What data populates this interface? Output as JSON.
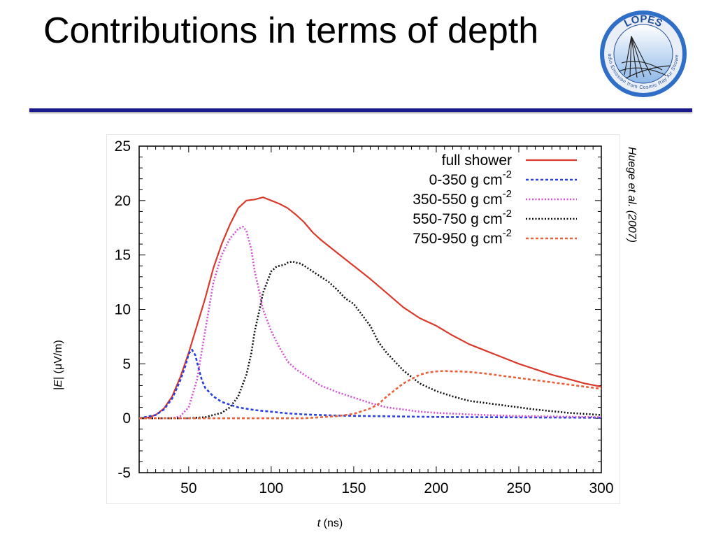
{
  "slide": {
    "title": "Contributions in terms of depth",
    "citation": "Huege et al. (2007)",
    "logo": {
      "top_text": "LOPES",
      "ring_text": "Radio Emission from Cosmic Ray Air Showers"
    }
  },
  "chart_data": {
    "type": "line",
    "xlabel": "t (ns)",
    "xlabel_italic": "t",
    "xlabel_unit": "(ns)",
    "ylabel": "|E| (μV/m)",
    "ylabel_italic": "E",
    "ylabel_unit": "(μV/m)",
    "xlim": [
      20,
      300
    ],
    "ylim": [
      -5,
      25
    ],
    "xticks": [
      50,
      100,
      150,
      200,
      250,
      300
    ],
    "yticks": [
      -5,
      0,
      5,
      10,
      15,
      20,
      25
    ],
    "grid": false,
    "legend_position": "top-right",
    "series": [
      {
        "name": "full shower",
        "label_base": "full shower",
        "label_sup": "",
        "color": "#d93a2b",
        "style": "solid",
        "x": [
          20,
          25,
          30,
          35,
          40,
          45,
          50,
          55,
          60,
          65,
          70,
          75,
          80,
          85,
          90,
          95,
          100,
          105,
          110,
          115,
          120,
          125,
          130,
          140,
          150,
          160,
          170,
          180,
          190,
          200,
          210,
          220,
          230,
          240,
          250,
          260,
          270,
          280,
          290,
          300
        ],
        "y": [
          0,
          0.05,
          0.3,
          0.9,
          2,
          3.8,
          6,
          8.5,
          11,
          13.8,
          16,
          17.8,
          19.3,
          20,
          20.1,
          20.3,
          20,
          19.7,
          19.3,
          18.7,
          18,
          17.1,
          16.4,
          15.2,
          14,
          12.8,
          11.5,
          10.2,
          9.2,
          8.5,
          7.6,
          6.8,
          6.2,
          5.6,
          5,
          4.5,
          4,
          3.6,
          3.2,
          2.9
        ]
      },
      {
        "name": "0-350 g cm-2",
        "label_base": "0-350 g cm",
        "label_sup": "-2",
        "color": "#2a3fe0",
        "style": "dashed",
        "x": [
          20,
          30,
          35,
          40,
          45,
          48,
          50,
          52,
          54,
          56,
          58,
          60,
          65,
          70,
          80,
          90,
          100,
          110,
          120,
          140,
          160,
          200,
          250,
          300
        ],
        "y": [
          0,
          0.3,
          0.8,
          1.8,
          3.5,
          4.8,
          5.9,
          6.3,
          5.8,
          4.6,
          3.5,
          2.8,
          2,
          1.5,
          1,
          0.75,
          0.6,
          0.45,
          0.35,
          0.25,
          0.2,
          0.12,
          0.08,
          0.05
        ]
      },
      {
        "name": "350-550 g cm-2",
        "label_base": "350-550 g cm",
        "label_sup": "-2",
        "color": "#d451d4",
        "style": "dotted",
        "x": [
          20,
          40,
          45,
          50,
          55,
          60,
          65,
          70,
          75,
          80,
          83,
          85,
          88,
          90,
          93,
          95,
          100,
          105,
          110,
          115,
          120,
          125,
          130,
          140,
          150,
          160,
          170,
          180,
          190,
          200,
          220,
          250,
          300
        ],
        "y": [
          0,
          0,
          0.2,
          1,
          3.5,
          8,
          12.5,
          15,
          16.5,
          17.4,
          17.6,
          17.2,
          15.5,
          13.5,
          11.5,
          10,
          8,
          6.5,
          5.2,
          4.5,
          4,
          3.5,
          3,
          2.4,
          1.9,
          1.4,
          1,
          0.8,
          0.6,
          0.5,
          0.35,
          0.2,
          0.1
        ]
      },
      {
        "name": "550-750 g cm-2",
        "label_base": "550-750 g cm",
        "label_sup": "-2",
        "color": "#111111",
        "style": "dotted",
        "x": [
          20,
          50,
          60,
          70,
          75,
          80,
          85,
          88,
          90,
          93,
          95,
          98,
          100,
          103,
          105,
          108,
          110,
          113,
          115,
          118,
          120,
          125,
          130,
          135,
          140,
          145,
          150,
          155,
          160,
          165,
          170,
          180,
          190,
          200,
          210,
          220,
          240,
          260,
          280,
          300
        ],
        "y": [
          0,
          0,
          0.1,
          0.5,
          1,
          2,
          4,
          6,
          8,
          10,
          11.5,
          12.7,
          13.5,
          13.9,
          14,
          14.1,
          14.3,
          14.4,
          14.3,
          14.2,
          14,
          13.5,
          13,
          12.5,
          11.8,
          11,
          10.5,
          9.5,
          8.5,
          7,
          6,
          4.4,
          3.2,
          2.5,
          2,
          1.6,
          1.2,
          0.8,
          0.5,
          0.3
        ]
      },
      {
        "name": "750-950 g cm-2",
        "label_base": "750-950 g cm",
        "label_sup": "-2",
        "color": "#e8603c",
        "style": "dashed",
        "x": [
          20,
          120,
          140,
          150,
          160,
          165,
          170,
          175,
          180,
          185,
          190,
          195,
          200,
          205,
          210,
          215,
          220,
          230,
          240,
          250,
          260,
          270,
          280,
          290,
          300
        ],
        "y": [
          0,
          0,
          0.2,
          0.4,
          0.9,
          1.3,
          2,
          2.6,
          3.2,
          3.6,
          4,
          4.2,
          4.3,
          4.35,
          4.3,
          4.3,
          4.25,
          4.1,
          3.9,
          3.7,
          3.5,
          3.3,
          3.1,
          2.9,
          2.7
        ]
      }
    ]
  }
}
